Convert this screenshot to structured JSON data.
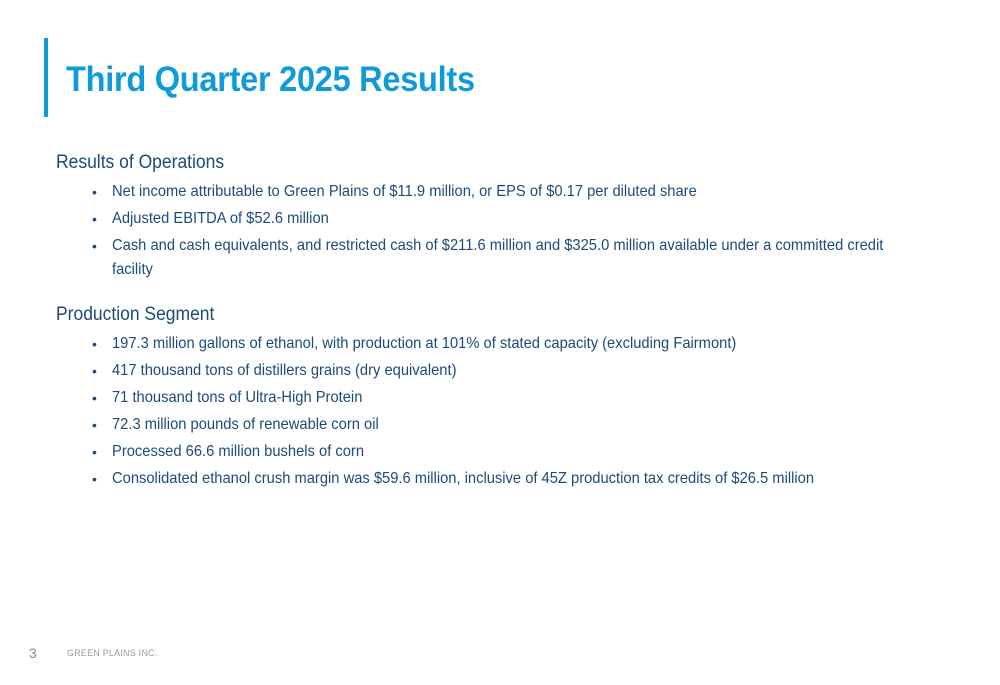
{
  "slide": {
    "title": "Third Quarter 2025 Results",
    "accent_color": "#0f9bd7",
    "text_color": "#1d4a7a"
  },
  "sections": [
    {
      "heading": "Results of Operations",
      "bullets": [
        "Net income attributable to Green Plains of $11.9 million, or EPS of $0.17 per diluted share",
        "Adjusted EBITDA of $52.6 million",
        "Cash and cash equivalents, and restricted cash of $211.6 million and $325.0 million available under a committed credit facility"
      ]
    },
    {
      "heading": "Production Segment",
      "bullets": [
        "197.3 million gallons of ethanol, with production at 101% of stated capacity (excluding Fairmont)",
        "417 thousand tons of distillers grains (dry equivalent)",
        "71 thousand tons of Ultra-High Protein",
        "72.3 million pounds of renewable corn oil",
        "Processed 66.6 million bushels of corn",
        "Consolidated ethanol crush margin was $59.6 million, inclusive of 45Z production tax credits of $26.5 million"
      ]
    }
  ],
  "footer": {
    "page_number": "3",
    "company": "GREEN PLAINS INC."
  },
  "bullet_glyph": "•"
}
